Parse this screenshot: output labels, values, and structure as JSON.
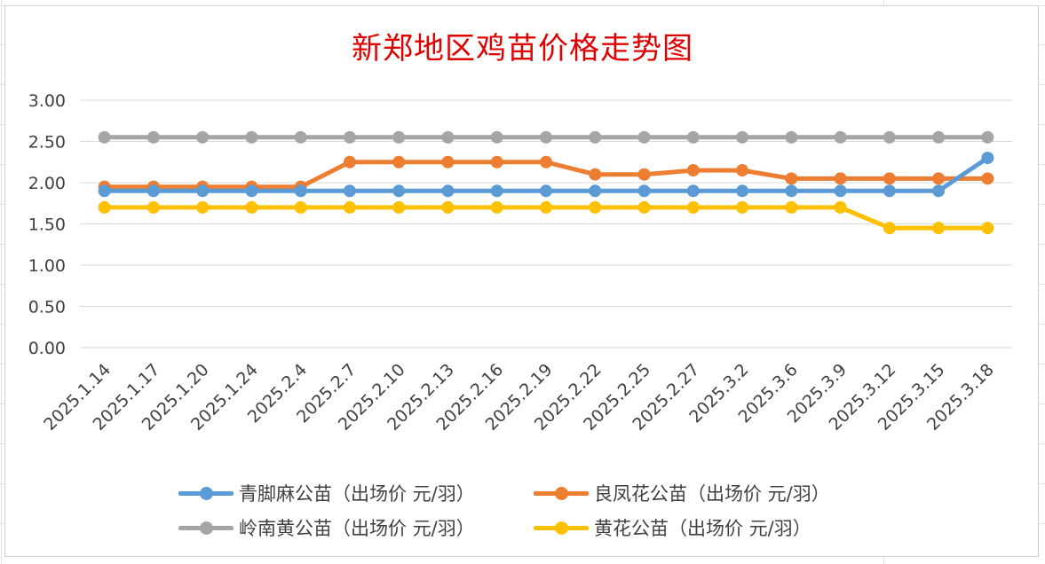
{
  "chart_data": {
    "type": "line",
    "title": "新郑地区鸡苗价格走势图",
    "categories": [
      "2025.1.14",
      "2025.1.17",
      "2025.1.20",
      "2025.1.24",
      "2025.2.4",
      "2025.2.7",
      "2025.2.10",
      "2025.2.13",
      "2025.2.16",
      "2025.2.19",
      "2025.2.22",
      "2025.2.25",
      "2025.2.27",
      "2025.3.2",
      "2025.3.6",
      "2025.3.9",
      "2025.3.12",
      "2025.3.15",
      "2025.3.18"
    ],
    "ylim": [
      0,
      3
    ],
    "yticks": [
      "0.00",
      "0.50",
      "1.00",
      "1.50",
      "2.00",
      "2.50",
      "3.00"
    ],
    "grid": true,
    "legend_position": "bottom",
    "series": [
      {
        "name": "青脚麻公苗（出场价 元/羽）",
        "color": "#5b9bd5",
        "values": [
          1.9,
          1.9,
          1.9,
          1.9,
          1.9,
          1.9,
          1.9,
          1.9,
          1.9,
          1.9,
          1.9,
          1.9,
          1.9,
          1.9,
          1.9,
          1.9,
          1.9,
          1.9,
          2.3
        ]
      },
      {
        "name": "良凤花公苗（出场价 元/羽）",
        "color": "#ed7d31",
        "values": [
          1.95,
          1.95,
          1.95,
          1.95,
          1.95,
          2.25,
          2.25,
          2.25,
          2.25,
          2.25,
          2.1,
          2.1,
          2.15,
          2.15,
          2.05,
          2.05,
          2.05,
          2.05,
          2.05
        ]
      },
      {
        "name": "岭南黄公苗（出场价 元/羽）",
        "color": "#a5a5a5",
        "values": [
          2.55,
          2.55,
          2.55,
          2.55,
          2.55,
          2.55,
          2.55,
          2.55,
          2.55,
          2.55,
          2.55,
          2.55,
          2.55,
          2.55,
          2.55,
          2.55,
          2.55,
          2.55,
          2.55
        ]
      },
      {
        "name": "黄花公苗（出场价 元/羽）",
        "color": "#ffc000",
        "values": [
          1.7,
          1.7,
          1.7,
          1.7,
          1.7,
          1.7,
          1.7,
          1.7,
          1.7,
          1.7,
          1.7,
          1.7,
          1.7,
          1.7,
          1.7,
          1.7,
          1.45,
          1.45,
          1.45
        ]
      }
    ]
  }
}
